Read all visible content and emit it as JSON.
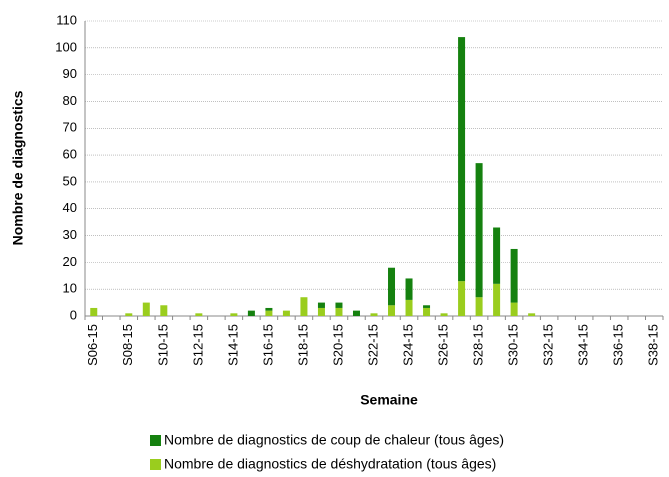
{
  "chart_data": {
    "type": "bar",
    "stacked": true,
    "x_label": "Semaine",
    "y_label": "Nombre de diagnostics",
    "categories": [
      "S06-15",
      null,
      "S08-15",
      null,
      "S10-15",
      null,
      "S12-15",
      null,
      "S14-15",
      null,
      "S16-15",
      null,
      "S18-15",
      null,
      "S20-15",
      null,
      "S22-15",
      null,
      "S24-15",
      null,
      "S26-15",
      null,
      "S28-15",
      null,
      "S30-15",
      null,
      "S32-15",
      null,
      "S34-15",
      null,
      "S36-15",
      null,
      "S38-15"
    ],
    "series": [
      {
        "name": "Nombre de diagnostics de coup de chaleur (tous âges)",
        "color": "#15810f",
        "values": [
          0,
          0,
          0,
          0,
          0,
          0,
          0,
          0,
          0,
          2,
          1,
          0,
          0,
          2,
          2,
          2,
          0,
          14,
          8,
          1,
          0,
          91,
          50,
          21,
          20,
          0,
          0,
          0,
          0,
          0,
          0,
          0,
          0
        ]
      },
      {
        "name": "Nombre de diagnostics de déshydratation (tous âges)",
        "color": "#9acd1e",
        "values": [
          3,
          0,
          1,
          5,
          4,
          0,
          1,
          0,
          1,
          0,
          2,
          2,
          7,
          3,
          3,
          0,
          1,
          4,
          6,
          3,
          1,
          13,
          7,
          12,
          5,
          1,
          0,
          0,
          0,
          0,
          0,
          0,
          0
        ]
      }
    ],
    "ylim": [
      0,
      110
    ],
    "yticks": [
      0,
      10,
      20,
      30,
      40,
      50,
      60,
      70,
      80,
      90,
      100,
      110
    ],
    "grid": true
  }
}
